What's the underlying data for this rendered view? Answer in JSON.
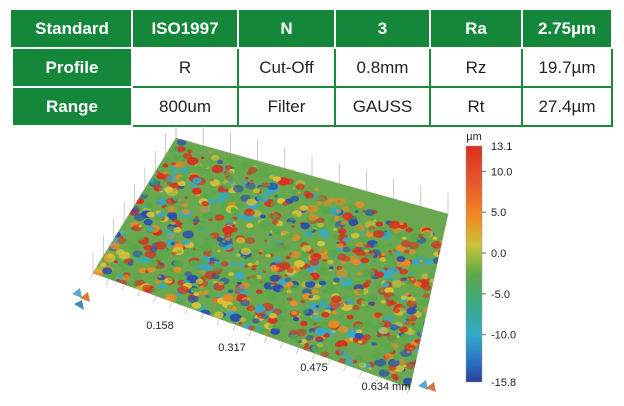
{
  "params_table": {
    "rows": [
      [
        "Standard",
        "ISO1997",
        "N",
        "3",
        "Ra",
        "2.75µm"
      ],
      [
        "Profile",
        "R",
        "Cut-Off",
        "0.8mm",
        "Rz",
        "19.7µm"
      ],
      [
        "Range",
        "800um",
        "Filter",
        "GAUSS",
        "Rt",
        "27.4µm"
      ]
    ]
  },
  "surface_plot": {
    "x_ticks": [
      "0.158",
      "0.317",
      "0.475",
      "0.634 mm"
    ],
    "colorbar": {
      "unit": "µm",
      "max_label": "13.1",
      "min_label": "-15.8",
      "ticks": [
        "10.0",
        "5.0",
        "0.0",
        "-5.0",
        "-10.0"
      ],
      "min": -15.8,
      "max": 13.1
    },
    "colors": {
      "red": "#d7301f",
      "orange": "#f08a24",
      "yellow": "#d9c23a",
      "green": "#5aa84a",
      "cyan": "#35a9c9",
      "blue": "#2a4fae",
      "grid": "#b8b8b8",
      "header_green": "#14873b"
    }
  }
}
